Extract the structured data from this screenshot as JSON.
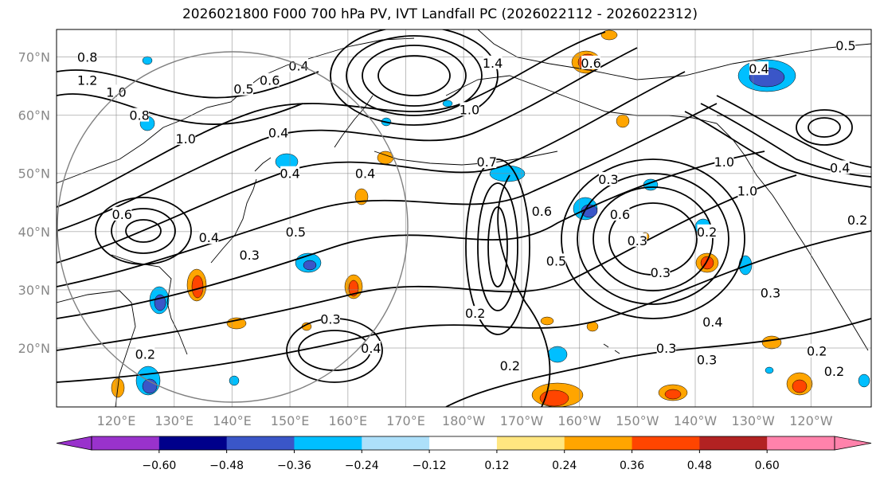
{
  "chart_data": {
    "type": "contour-map",
    "title": "2026021800 F000 700 hPa PV, IVT Landfall PC (2026022112 - 2026022312)",
    "lat_ticks": [
      {
        "value": 70,
        "label": "70°N"
      },
      {
        "value": 60,
        "label": "60°N"
      },
      {
        "value": 50,
        "label": "50°N"
      },
      {
        "value": 40,
        "label": "40°N"
      },
      {
        "value": 30,
        "label": "30°N"
      },
      {
        "value": 20,
        "label": "20°N"
      }
    ],
    "lon_ticks": [
      {
        "value": 120,
        "label": "120°E"
      },
      {
        "value": 130,
        "label": "130°E"
      },
      {
        "value": 140,
        "label": "140°E"
      },
      {
        "value": 150,
        "label": "150°E"
      },
      {
        "value": 160,
        "label": "160°E"
      },
      {
        "value": 170,
        "label": "170°E"
      },
      {
        "value": 180,
        "label": "180°W"
      },
      {
        "value": 190,
        "label": "170°W"
      },
      {
        "value": 200,
        "label": "160°W"
      },
      {
        "value": 210,
        "label": "150°W"
      },
      {
        "value": 220,
        "label": "140°W"
      },
      {
        "value": 230,
        "label": "130°W"
      },
      {
        "value": 240,
        "label": "120°W"
      }
    ],
    "colorbar": {
      "bounds": [
        -0.72,
        -0.6,
        -0.48,
        -0.36,
        -0.24,
        -0.12,
        0.12,
        0.24,
        0.36,
        0.48,
        0.6,
        0.72
      ],
      "tick_labels": [
        "−0.60",
        "−0.48",
        "−0.36",
        "−0.24",
        "−0.12",
        "0.12",
        "0.24",
        "0.36",
        "0.48",
        "0.60"
      ],
      "colors": [
        "#9932CC",
        "#00008B",
        "#3A56C8",
        "#00BFFF",
        "#ADE0FA",
        "#FFFFFF",
        "#FFE680",
        "#FFA500",
        "#FF4500",
        "#B22222",
        "#FF82AB"
      ],
      "extend_min_color": "#9932CC",
      "extend_max_color": "#FF82AB"
    },
    "contour_labels": [
      {
        "text": "0.4",
        "lon": 151.5,
        "lat": 68.5
      },
      {
        "text": "0.6",
        "lon": 146.5,
        "lat": 66.0
      },
      {
        "text": "0.5",
        "lon": 142.0,
        "lat": 64.5
      },
      {
        "text": "0.8",
        "lon": 115.0,
        "lat": 70.0
      },
      {
        "text": "1.2",
        "lon": 115.0,
        "lat": 66.0
      },
      {
        "text": "1.0",
        "lon": 120.0,
        "lat": 64.0
      },
      {
        "text": "0.8",
        "lon": 124.0,
        "lat": 60.0
      },
      {
        "text": "1.0",
        "lon": 132.0,
        "lat": 56.0
      },
      {
        "text": "0.4",
        "lon": 148.0,
        "lat": 57.0
      },
      {
        "text": "0.4",
        "lon": 150.0,
        "lat": 50.0
      },
      {
        "text": "0.4",
        "lon": 163.0,
        "lat": 50.0
      },
      {
        "text": "0.4",
        "lon": 136.0,
        "lat": 39.0
      },
      {
        "text": "0.5",
        "lon": 151.0,
        "lat": 40.0
      },
      {
        "text": "0.6",
        "lon": 121.0,
        "lat": 43.0
      },
      {
        "text": "0.3",
        "lon": 143.0,
        "lat": 36.0
      },
      {
        "text": "0.3",
        "lon": 157.0,
        "lat": 25.0
      },
      {
        "text": "0.2",
        "lon": 125.0,
        "lat": 19.0
      },
      {
        "text": "0.4",
        "lon": 164.0,
        "lat": 20.0
      },
      {
        "text": "1.4",
        "lon": 185.0,
        "lat": 69.0
      },
      {
        "text": "1.0",
        "lon": 181.0,
        "lat": 61.0
      },
      {
        "text": "0.7",
        "lon": 184.0,
        "lat": 52.0
      },
      {
        "text": "0.6",
        "lon": 193.5,
        "lat": 43.5
      },
      {
        "text": "0.5",
        "lon": 196.0,
        "lat": 35.0
      },
      {
        "text": "0.2",
        "lon": 182.0,
        "lat": 26.0
      },
      {
        "text": "0.2",
        "lon": 188.0,
        "lat": 17.0
      },
      {
        "text": "0.6",
        "lon": 202.0,
        "lat": 69.0
      },
      {
        "text": "0.6",
        "lon": 207.0,
        "lat": 43.0
      },
      {
        "text": "0.3",
        "lon": 210.0,
        "lat": 38.5
      },
      {
        "text": "0.3",
        "lon": 214.0,
        "lat": 33.0
      },
      {
        "text": "0.3",
        "lon": 205.0,
        "lat": 49.0
      },
      {
        "text": "0.2",
        "lon": 222.0,
        "lat": 40.0
      },
      {
        "text": "0.3",
        "lon": 215.0,
        "lat": 20.0
      },
      {
        "text": "0.4",
        "lon": 223.0,
        "lat": 24.5
      },
      {
        "text": "0.3",
        "lon": 222.0,
        "lat": 18.0
      },
      {
        "text": "0.3",
        "lon": 233.0,
        "lat": 29.5
      },
      {
        "text": "0.2",
        "lon": 241.0,
        "lat": 19.5
      },
      {
        "text": "0.2",
        "lon": 244.0,
        "lat": 16.0
      },
      {
        "text": "0.4",
        "lon": 231.0,
        "lat": 68.0
      },
      {
        "text": "0.5",
        "lon": 246.0,
        "lat": 72.0
      },
      {
        "text": "1.0",
        "lon": 225.0,
        "lat": 52.0
      },
      {
        "text": "1.0",
        "lon": 229.0,
        "lat": 47.0
      },
      {
        "text": "0.4",
        "lon": 245.0,
        "lat": 51.0
      },
      {
        "text": "0.2",
        "lon": 248.0,
        "lat": 42.0
      }
    ]
  }
}
